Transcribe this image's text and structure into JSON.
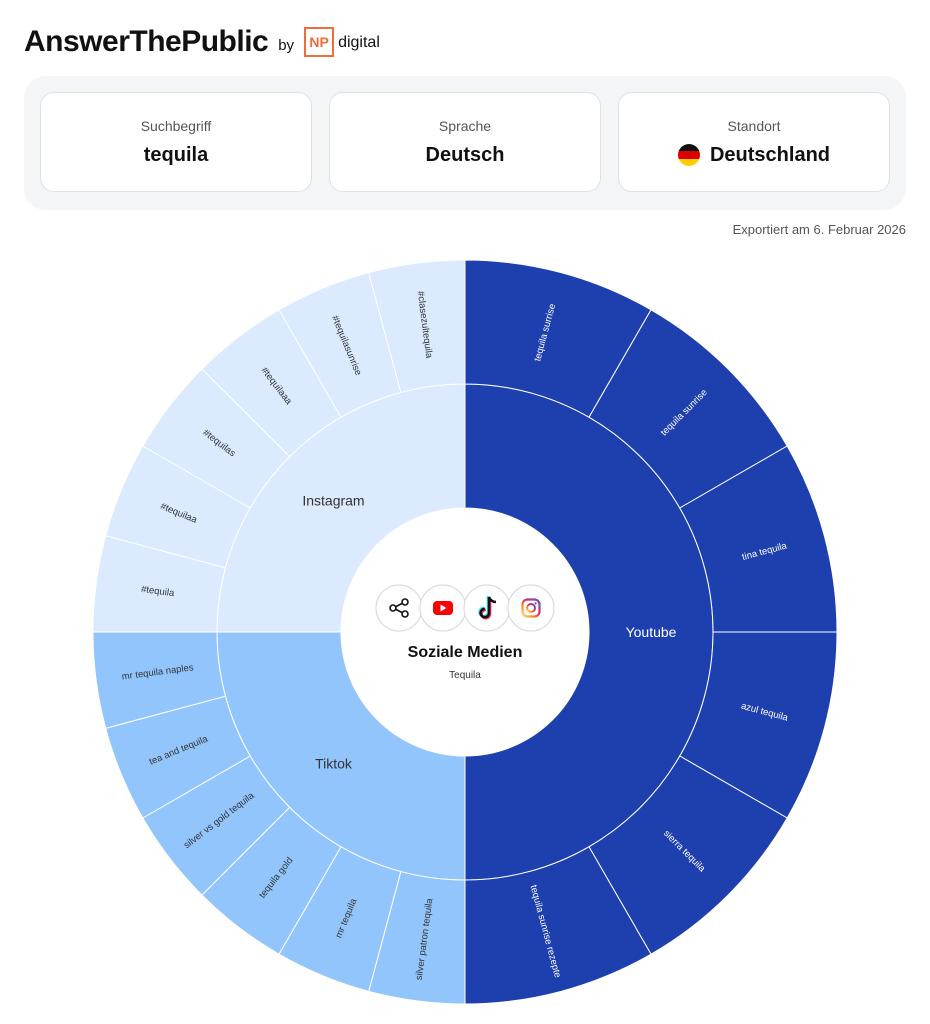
{
  "header": {
    "logo": "AnswerThePublic",
    "by": "by",
    "np_badge": "NP",
    "np_text": "digital"
  },
  "search": {
    "term_label": "Suchbegriff",
    "term_value": "tequila",
    "language_label": "Sprache",
    "language_value": "Deutsch",
    "location_label": "Standort",
    "location_value": "Deutschland"
  },
  "export_date": "Exportiert am 6. Februar 2026",
  "chart_data": {
    "type": "sunburst",
    "center_title": "Soziale Medien",
    "center_subtitle": "Tequila",
    "center_icons": [
      "share-icon",
      "youtube-icon",
      "tiktok-icon",
      "instagram-icon"
    ],
    "groups": [
      {
        "name": "Youtube",
        "color": "#1e40af",
        "text_color": "#ffffff",
        "share": 0.5,
        "items": [
          "tequila surrise",
          "tequila sunrise",
          "tina tequila",
          "azul tequila",
          "sierra tequila",
          "tequila sunrise rezepte"
        ]
      },
      {
        "name": "Tiktok",
        "color": "#93c5fd",
        "text_color": "#333333",
        "share": 0.25,
        "items": [
          "silver patron tequila",
          "mr tequila",
          "tequila gold",
          "silver vs gold tequila",
          "tea and tequila",
          "mr tequila naples"
        ]
      },
      {
        "name": "Instagram",
        "color": "#dbeafe",
        "text_color": "#333333",
        "share": 0.25,
        "items": [
          "#tequila",
          "#tequilaa",
          "#tequilas",
          "#tequilaaa",
          "#tequilasunrise",
          "#clasezultequila"
        ]
      }
    ]
  }
}
